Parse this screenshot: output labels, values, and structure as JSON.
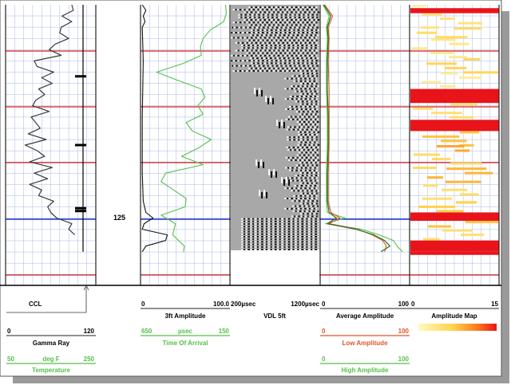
{
  "depth_label": "125",
  "colors": {
    "grid": "#aab7e2",
    "red_line": "#d81f1f",
    "blue_line": "#1f2fd0",
    "gamma": "#3a3a3a",
    "green": "#55c04a",
    "ccl": "#000000",
    "avg": "#2f6f1f",
    "low": "#e0552a",
    "vdl_bg": "#a8a8a8",
    "map_red": "#e8141a",
    "map_yellow": "#ffe066"
  },
  "headers": {
    "track1": {
      "ccl_label": "CCL",
      "gamma": {
        "min": "0",
        "max": "120",
        "name": "Gamma Ray"
      },
      "temp": {
        "min": "50",
        "unit": "deg F",
        "max": "250",
        "name": "Temperature"
      }
    },
    "track3": {
      "amp": {
        "min": "0",
        "max": "100.0",
        "name": "3ft Amplitude"
      },
      "tt": {
        "min": "650",
        "unit": "µsec",
        "max": "150",
        "name": "Time Of Arrival"
      }
    },
    "track4": {
      "min": "200µsec",
      "max": "1200µsec",
      "name": "VDL 5ft"
    },
    "track5": {
      "avg": {
        "min": "0",
        "max": "100",
        "name": "Average Amplitude"
      },
      "low": {
        "min": "0",
        "max": "100",
        "name": "Low Amplitude"
      },
      "high": {
        "min": "0",
        "max": "100",
        "name": "High Amplitude"
      }
    },
    "track6": {
      "min": "0",
      "max": "15",
      "name": "Amplitude Map"
    }
  },
  "chart_data": {
    "type": "line",
    "marker_depth_label": "125",
    "tracks": [
      {
        "name": "Gamma Ray",
        "range": [
          0,
          120
        ],
        "y_rel": [
          0,
          0.02,
          0.04,
          0.06,
          0.08,
          0.1,
          0.12,
          0.14,
          0.16,
          0.18,
          0.2,
          0.22,
          0.24,
          0.26,
          0.28,
          0.3,
          0.32,
          0.34,
          0.36,
          0.38,
          0.4,
          0.42,
          0.44,
          0.46,
          0.48,
          0.5,
          0.52,
          0.54,
          0.56,
          0.58,
          0.6,
          0.62,
          0.64,
          0.66,
          0.68,
          0.7,
          0.72,
          0.74,
          0.76,
          0.78,
          0.8,
          0.82
        ],
        "values": [
          88,
          90,
          75,
          88,
          74,
          72,
          84,
          66,
          58,
          74,
          38,
          42,
          64,
          48,
          62,
          44,
          52,
          40,
          36,
          58,
          34,
          40,
          46,
          30,
          54,
          26,
          42,
          52,
          32,
          62,
          38,
          56,
          32,
          48,
          44,
          64,
          56,
          60,
          68,
          88,
          84,
          92
        ]
      },
      {
        "name": "CCL",
        "collar_depths_rel": [
          0.255,
          0.5,
          0.725,
          0.735
        ]
      },
      {
        "name": "3ft Amplitude",
        "range": [
          0,
          100
        ],
        "y_rel": [
          0,
          0.02,
          0.04,
          0.06,
          0.08,
          0.2,
          0.4,
          0.6,
          0.7,
          0.74,
          0.76,
          0.78,
          0.8,
          0.82,
          0.84,
          0.86,
          0.88
        ],
        "values": [
          2,
          6,
          3,
          5,
          2,
          3,
          2,
          2,
          3,
          6,
          14,
          4,
          2,
          30,
          28,
          6,
          2
        ]
      },
      {
        "name": "Time Of Arrival",
        "range": [
          650,
          150
        ],
        "y_rel": [
          0,
          0.03,
          0.06,
          0.09,
          0.12,
          0.15,
          0.18,
          0.21,
          0.24,
          0.27,
          0.3,
          0.33,
          0.36,
          0.39,
          0.42,
          0.45,
          0.48,
          0.51,
          0.54,
          0.57,
          0.6,
          0.63,
          0.66,
          0.69,
          0.72,
          0.75,
          0.78,
          0.82,
          0.86,
          0.88
        ],
        "values": [
          175,
          170,
          185,
          260,
          300,
          315,
          310,
          415,
          560,
          440,
          310,
          290,
          330,
          300,
          395,
          360,
          255,
          325,
          420,
          300,
          510,
          535,
          465,
          395,
          400,
          535,
          455,
          470,
          405,
          410
        ]
      },
      {
        "name": "Average Amplitude",
        "range": [
          0,
          100
        ],
        "y_rel": [
          0,
          0.04,
          0.08,
          0.12,
          0.2,
          0.3,
          0.4,
          0.5,
          0.6,
          0.7,
          0.74,
          0.76,
          0.78,
          0.8,
          0.82,
          0.84,
          0.86,
          0.88
        ],
        "values": [
          4,
          12,
          8,
          9,
          8,
          8,
          9,
          9,
          8,
          8,
          10,
          18,
          8,
          40,
          60,
          72,
          78,
          68
        ]
      },
      {
        "name": "Low Amplitude",
        "range": [
          0,
          100
        ],
        "y_rel": [
          0,
          0.04,
          0.08,
          0.12,
          0.2,
          0.3,
          0.4,
          0.5,
          0.6,
          0.7,
          0.74,
          0.76,
          0.78,
          0.8,
          0.82,
          0.84,
          0.86,
          0.88
        ],
        "values": [
          5,
          14,
          9,
          10,
          9,
          10,
          10,
          10,
          9,
          9,
          12,
          22,
          10,
          42,
          58,
          70,
          74,
          72
        ]
      },
      {
        "name": "High Amplitude",
        "range": [
          0,
          100
        ],
        "y_rel": [
          0,
          0.04,
          0.08,
          0.12,
          0.2,
          0.3,
          0.4,
          0.5,
          0.6,
          0.7,
          0.74,
          0.76,
          0.78,
          0.8,
          0.82,
          0.84,
          0.86,
          0.88
        ],
        "values": [
          3,
          10,
          7,
          8,
          7,
          7,
          8,
          8,
          7,
          7,
          8,
          28,
          6,
          46,
          66,
          82,
          86,
          92
        ]
      },
      {
        "name": "Amplitude Map",
        "range": [
          0,
          15
        ],
        "band_y_rel": [
          0,
          0.012,
          0.03,
          0.08,
          0.12,
          0.19,
          0.24,
          0.3,
          0.35,
          0.41,
          0.45,
          0.5,
          0.53,
          0.58,
          0.64,
          0.7,
          0.74,
          0.77,
          0.8,
          0.84,
          0.88
        ],
        "intensity": [
          0.1,
          1.0,
          0.25,
          0.35,
          0.2,
          0.4,
          0.15,
          1.0,
          0.3,
          0.9,
          0.5,
          0.6,
          0.35,
          0.55,
          0.3,
          0.45,
          0.9,
          0.5,
          0.3,
          1.0,
          1.0
        ]
      }
    ]
  }
}
